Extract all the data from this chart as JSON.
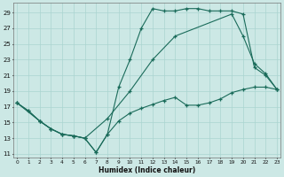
{
  "xlabel": "Humidex (Indice chaleur)",
  "bg_color": "#cce8e5",
  "grid_color": "#aad4d0",
  "line_color": "#1a6b5a",
  "xlim": [
    -0.3,
    23.3
  ],
  "ylim": [
    10.5,
    30.2
  ],
  "xticks": [
    0,
    1,
    2,
    3,
    4,
    5,
    6,
    7,
    8,
    9,
    10,
    11,
    12,
    13,
    14,
    15,
    16,
    17,
    18,
    19,
    20,
    21,
    22,
    23
  ],
  "yticks": [
    11,
    13,
    15,
    17,
    19,
    21,
    23,
    25,
    27,
    29
  ],
  "s1_x": [
    0,
    1,
    2,
    3,
    4,
    5,
    6,
    7,
    8,
    9,
    10,
    11,
    12,
    13,
    14,
    15,
    16,
    17,
    18,
    19,
    20,
    21,
    22,
    23
  ],
  "s1_y": [
    17.5,
    16.5,
    15.2,
    14.2,
    13.5,
    13.3,
    13.0,
    11.2,
    13.5,
    19.5,
    23.0,
    27.0,
    29.5,
    29.2,
    29.2,
    29.5,
    29.5,
    29.2,
    29.2,
    29.2,
    28.8,
    22.0,
    21.0,
    19.2
  ],
  "s2_x": [
    0,
    2,
    3,
    4,
    5,
    6,
    8,
    10,
    12,
    14,
    19,
    20,
    21,
    22,
    23
  ],
  "s2_y": [
    17.5,
    15.2,
    14.2,
    13.5,
    13.3,
    13.0,
    15.5,
    19.0,
    23.0,
    26.0,
    28.8,
    26.0,
    22.5,
    21.2,
    19.2
  ],
  "s3_x": [
    0,
    1,
    2,
    3,
    4,
    5,
    6,
    7,
    8,
    9,
    10,
    11,
    12,
    13,
    14,
    15,
    16,
    17,
    18,
    19,
    20,
    21,
    22,
    23
  ],
  "s3_y": [
    17.5,
    16.5,
    15.2,
    14.2,
    13.5,
    13.3,
    13.0,
    11.2,
    13.5,
    15.2,
    16.2,
    16.8,
    17.3,
    17.8,
    18.2,
    17.2,
    17.2,
    17.5,
    18.0,
    18.8,
    19.2,
    19.5,
    19.5,
    19.2
  ]
}
